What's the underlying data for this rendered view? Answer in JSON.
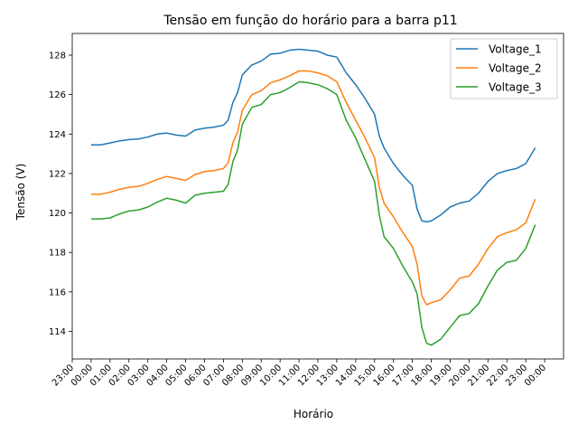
{
  "chart_data": {
    "type": "line",
    "title": "Tensão em função do horário para a barra p11",
    "xlabel": "Horário",
    "ylabel": "Tensão (V)",
    "xlim": [
      -1,
      25
    ],
    "ylim": [
      112.6,
      129.1
    ],
    "x_ticks": [
      {
        "v": -1,
        "label": "23:00"
      },
      {
        "v": 0,
        "label": "00:00"
      },
      {
        "v": 1,
        "label": "01:00"
      },
      {
        "v": 2,
        "label": "02:00"
      },
      {
        "v": 3,
        "label": "03:00"
      },
      {
        "v": 4,
        "label": "04:00"
      },
      {
        "v": 5,
        "label": "05:00"
      },
      {
        "v": 6,
        "label": "06:00"
      },
      {
        "v": 7,
        "label": "07:00"
      },
      {
        "v": 8,
        "label": "08:00"
      },
      {
        "v": 9,
        "label": "09:00"
      },
      {
        "v": 10,
        "label": "10:00"
      },
      {
        "v": 11,
        "label": "11:00"
      },
      {
        "v": 12,
        "label": "12:00"
      },
      {
        "v": 13,
        "label": "13:00"
      },
      {
        "v": 14,
        "label": "14:00"
      },
      {
        "v": 15,
        "label": "15:00"
      },
      {
        "v": 16,
        "label": "16:00"
      },
      {
        "v": 17,
        "label": "17:00"
      },
      {
        "v": 18,
        "label": "18:00"
      },
      {
        "v": 19,
        "label": "19:00"
      },
      {
        "v": 20,
        "label": "20:00"
      },
      {
        "v": 21,
        "label": "21:00"
      },
      {
        "v": 22,
        "label": "22:00"
      },
      {
        "v": 23,
        "label": "23:00"
      },
      {
        "v": 24,
        "label": "00:00"
      }
    ],
    "y_ticks": [
      114,
      116,
      118,
      120,
      122,
      124,
      126,
      128
    ],
    "grid": false,
    "legend": "top-right",
    "x_hours": [
      0,
      0.5,
      1,
      1.5,
      2,
      2.5,
      3,
      3.5,
      4,
      4.5,
      5,
      5.5,
      6,
      6.5,
      7,
      7.25,
      7.5,
      7.75,
      8,
      8.5,
      9,
      9.5,
      10,
      10.5,
      11,
      11.5,
      12,
      12.5,
      13,
      13.5,
      14,
      14.5,
      15,
      15.25,
      15.5,
      16,
      16.5,
      17,
      17.25,
      17.5,
      17.75,
      18,
      18.5,
      19,
      19.5,
      20,
      20.5,
      21,
      21.5,
      22,
      22.5,
      23,
      23.5
    ],
    "series": [
      {
        "name": "Voltage_1",
        "color": "#1f77b4",
        "values": [
          123.45,
          123.45,
          123.55,
          123.65,
          123.72,
          123.75,
          123.85,
          124.0,
          124.05,
          123.95,
          123.9,
          124.2,
          124.3,
          124.35,
          124.45,
          124.7,
          125.6,
          126.1,
          127.0,
          127.5,
          127.7,
          128.05,
          128.1,
          128.25,
          128.3,
          128.25,
          128.2,
          128.0,
          127.9,
          127.1,
          126.5,
          125.8,
          125.0,
          123.9,
          123.3,
          122.5,
          121.9,
          121.4,
          120.2,
          119.6,
          119.55,
          119.6,
          119.9,
          120.3,
          120.5,
          120.6,
          121.0,
          121.6,
          122.0,
          122.15,
          122.25,
          122.5,
          123.3
        ]
      },
      {
        "name": "Voltage_2",
        "color": "#ff7f0e",
        "values": [
          120.95,
          120.95,
          121.05,
          121.2,
          121.3,
          121.35,
          121.5,
          121.7,
          121.85,
          121.75,
          121.65,
          121.95,
          122.1,
          122.15,
          122.25,
          122.55,
          123.55,
          124.1,
          125.2,
          126.0,
          126.2,
          126.6,
          126.75,
          126.95,
          127.2,
          127.2,
          127.1,
          126.95,
          126.65,
          125.6,
          124.7,
          123.8,
          122.8,
          121.3,
          120.5,
          119.8,
          119.0,
          118.3,
          117.4,
          115.8,
          115.35,
          115.45,
          115.6,
          116.1,
          116.7,
          116.8,
          117.4,
          118.2,
          118.8,
          119.0,
          119.15,
          119.5,
          120.7
        ]
      },
      {
        "name": "Voltage_3",
        "color": "#2ca02c",
        "values": [
          119.7,
          119.7,
          119.75,
          119.95,
          120.1,
          120.15,
          120.3,
          120.55,
          120.75,
          120.65,
          120.5,
          120.9,
          121.0,
          121.05,
          121.1,
          121.45,
          122.6,
          123.2,
          124.5,
          125.35,
          125.5,
          126.0,
          126.1,
          126.35,
          126.65,
          126.6,
          126.5,
          126.3,
          126.0,
          124.7,
          123.8,
          122.7,
          121.6,
          119.9,
          118.8,
          118.2,
          117.3,
          116.5,
          115.9,
          114.2,
          113.4,
          113.3,
          113.6,
          114.2,
          114.8,
          114.9,
          115.4,
          116.3,
          117.1,
          117.5,
          117.6,
          118.2,
          119.4
        ]
      }
    ]
  }
}
